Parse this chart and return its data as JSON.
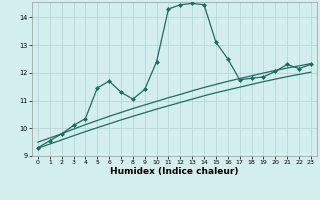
{
  "xlabel": "Humidex (Indice chaleur)",
  "ylim": [
    9.0,
    14.55
  ],
  "yticks": [
    9,
    10,
    11,
    12,
    13,
    14
  ],
  "xlim": [
    -0.5,
    23.5
  ],
  "background_color": "#d4eeee",
  "grid_color": "#b0d4d4",
  "line_color": "#1a6e60",
  "line1_x": [
    0,
    1,
    2,
    3,
    4,
    5,
    6,
    7,
    8,
    9,
    10,
    11,
    12,
    13,
    14,
    15,
    16,
    17,
    18,
    19,
    20,
    21,
    22,
    23
  ],
  "line1_y": [
    9.3,
    9.55,
    9.8,
    10.1,
    10.35,
    11.45,
    11.7,
    11.3,
    11.05,
    11.4,
    12.4,
    14.3,
    14.45,
    14.5,
    14.45,
    13.1,
    12.5,
    11.75,
    11.8,
    11.85,
    12.05,
    12.3,
    12.15,
    12.3
  ],
  "line2_x": [
    0,
    1,
    2,
    3,
    4,
    5,
    6,
    7,
    8,
    9,
    10,
    11,
    12,
    13,
    14,
    15,
    16,
    17,
    18,
    19,
    20,
    21,
    22,
    23
  ],
  "line2_y": [
    9.5,
    9.65,
    9.8,
    9.97,
    10.13,
    10.28,
    10.43,
    10.57,
    10.71,
    10.84,
    10.97,
    11.1,
    11.22,
    11.35,
    11.47,
    11.58,
    11.69,
    11.79,
    11.89,
    11.99,
    12.08,
    12.17,
    12.25,
    12.33
  ],
  "line3_x": [
    0,
    1,
    2,
    3,
    4,
    5,
    6,
    7,
    8,
    9,
    10,
    11,
    12,
    13,
    14,
    15,
    16,
    17,
    18,
    19,
    20,
    21,
    22,
    23
  ],
  "line3_y": [
    9.28,
    9.43,
    9.58,
    9.73,
    9.88,
    10.02,
    10.16,
    10.3,
    10.43,
    10.56,
    10.69,
    10.81,
    10.93,
    11.05,
    11.17,
    11.28,
    11.38,
    11.48,
    11.58,
    11.68,
    11.77,
    11.86,
    11.94,
    12.02
  ],
  "xtick_positions": [
    0,
    1,
    2,
    3,
    4,
    5,
    6,
    7,
    8,
    9,
    10,
    11,
    12,
    13,
    14,
    15,
    16,
    17,
    18,
    19,
    20,
    21,
    22,
    23
  ],
  "xtick_labels": [
    "0",
    "1",
    "2",
    "3",
    "4",
    "5",
    "6",
    "7",
    "8",
    "9",
    "10",
    "11",
    "12",
    "13",
    "14",
    "15",
    "16",
    "17",
    "18",
    "19",
    "20",
    "21",
    "22",
    "23"
  ]
}
